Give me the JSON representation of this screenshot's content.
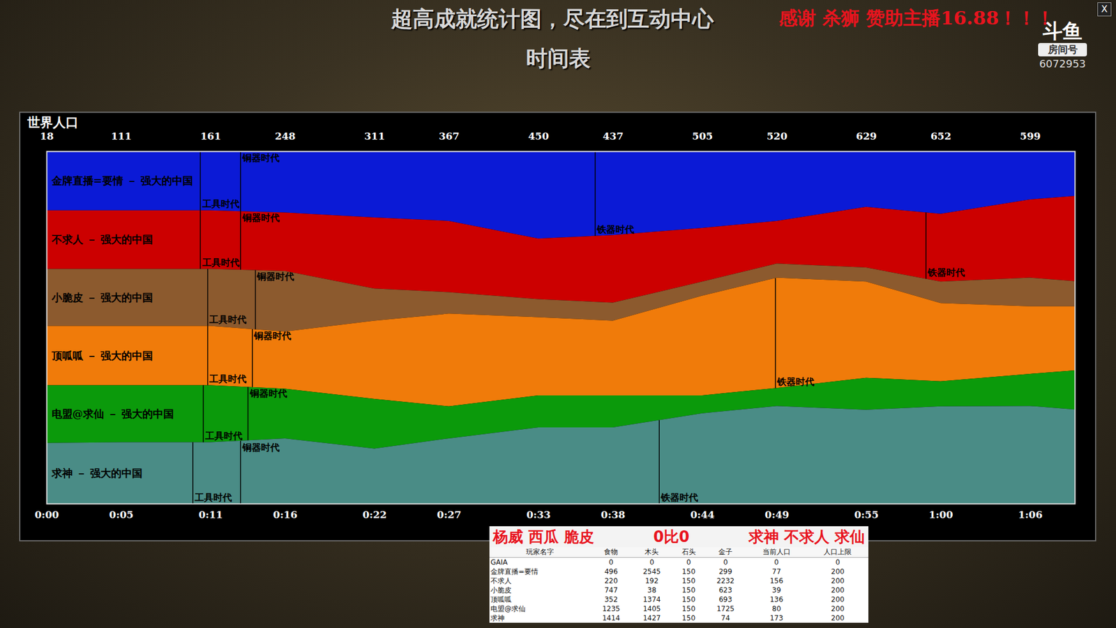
{
  "header": {
    "title": "超高成就统计图，尽在到互动中心",
    "donation": "感谢 杀狮 赞助主播16.88！！！",
    "subtitle": "时间表"
  },
  "watermark": {
    "logo": "斗鱼",
    "room_label": "房间号",
    "room_id": "6072953",
    "close": "X"
  },
  "chart_data": {
    "type": "area",
    "stacked": true,
    "title": "世界人口",
    "tick_labels": "x",
    "x": [
      0,
      5,
      11,
      16,
      22,
      27,
      33,
      38,
      44,
      49,
      55,
      60,
      66,
      69
    ],
    "xlim": [
      0,
      69
    ],
    "xticks": [
      {
        "value": 0,
        "label": "0:00"
      },
      {
        "value": 5,
        "label": "0:05"
      },
      {
        "value": 11,
        "label": "0:11"
      },
      {
        "value": 16,
        "label": "0:16"
      },
      {
        "value": 22,
        "label": "0:22"
      },
      {
        "value": 27,
        "label": "0:27"
      },
      {
        "value": 33,
        "label": "0:33"
      },
      {
        "value": 38,
        "label": "0:38"
      },
      {
        "value": 44,
        "label": "0:44"
      },
      {
        "value": 49,
        "label": "0:49"
      },
      {
        "value": 55,
        "label": "0:55"
      },
      {
        "value": 60,
        "label": "1:00"
      },
      {
        "value": 66,
        "label": "1:06"
      }
    ],
    "ylim": [
      0,
      100
    ],
    "world_population": {
      "x": [
        0,
        5,
        11,
        16,
        22,
        27,
        33,
        38,
        44,
        49,
        55,
        60,
        66
      ],
      "values": [
        18,
        111,
        161,
        248,
        311,
        367,
        450,
        437,
        505,
        520,
        629,
        652,
        599
      ]
    },
    "series": [
      {
        "name": "金牌直播=要情 － 强大的中国",
        "color": "#0b1ad6",
        "values": [
          16.8,
          16.8,
          16.8,
          17.4,
          18.8,
          19.8,
          24.8,
          23.8,
          21.8,
          19.8,
          15.8,
          17.8,
          13.7,
          12.7
        ],
        "markers": [
          {
            "label": "工具时代",
            "x": 10.3
          },
          {
            "label": "铜器时代",
            "x": 13.0
          },
          {
            "label": "铁器时代",
            "x": 36.8
          }
        ]
      },
      {
        "name": "不求人 － 强大的中国",
        "color": "#cc0000",
        "values": [
          16.6,
          16.6,
          16.6,
          16.6,
          20.2,
          20.2,
          17.2,
          19.2,
          15.2,
          12.1,
          17.2,
          19.2,
          22.2,
          24.2
        ],
        "markers": [
          {
            "label": "工具时代",
            "x": 10.3
          },
          {
            "label": "铜器时代",
            "x": 13.0
          },
          {
            "label": "铁器时代",
            "x": 59.0
          }
        ]
      },
      {
        "name": "小脆皮 － 强大的中国",
        "color": "#8c5a2e",
        "values": [
          16.2,
          16.2,
          16.2,
          17.2,
          9.1,
          6.1,
          5.1,
          5.1,
          4.0,
          4.0,
          4.0,
          6.1,
          8.1,
          7.1
        ],
        "markers": [
          {
            "label": "工具时代",
            "x": 10.8
          },
          {
            "label": "铜器时代",
            "x": 14.0
          }
        ]
      },
      {
        "name": "顶呱呱 － 强大的中国",
        "color": "#f07b0a",
        "values": [
          16.8,
          16.8,
          16.8,
          16.2,
          22.2,
          26.3,
          22.2,
          21.2,
          28.3,
          31.3,
          27.3,
          22.2,
          19.2,
          18.2
        ],
        "markers": [
          {
            "label": "工具时代",
            "x": 10.8
          },
          {
            "label": "铜器时代",
            "x": 13.8
          },
          {
            "label": "铁器时代",
            "x": 48.9
          }
        ]
      },
      {
        "name": "电盟@求仙 － 强大的中国",
        "color": "#0b9a0b",
        "values": [
          16.4,
          16.2,
          16.2,
          14.1,
          14.1,
          9.1,
          9.1,
          9.1,
          5.1,
          5.1,
          9.1,
          7.1,
          9.1,
          11.1
        ],
        "markers": [
          {
            "label": "工具时代",
            "x": 10.5
          },
          {
            "label": "铜器时代",
            "x": 13.5
          }
        ]
      },
      {
        "name": "求神 － 强大的中国",
        "color": "#4a8c86",
        "values": [
          17.2,
          17.4,
          17.4,
          18.5,
          15.6,
          18.5,
          21.6,
          21.6,
          25.6,
          27.7,
          26.6,
          27.6,
          27.7,
          26.7
        ],
        "markers": [
          {
            "label": "工具时代",
            "x": 9.8
          },
          {
            "label": "铜器时代",
            "x": 13.0
          },
          {
            "label": "铁器时代",
            "x": 41.1
          }
        ]
      }
    ]
  },
  "scoreboard": {
    "title": [
      "杨威 西瓜 脆皮",
      "0比0",
      "求神 不求人 求仙"
    ],
    "columns": [
      "玩家名字",
      "食物",
      "木头",
      "石头",
      "金子",
      "当前人口",
      "人口上限"
    ],
    "rows": [
      [
        "GAIA",
        0,
        0,
        0,
        0,
        0,
        0
      ],
      [
        "金牌直播=要情",
        496,
        2545,
        150,
        299,
        77,
        200
      ],
      [
        "不求人",
        220,
        192,
        150,
        2232,
        156,
        200
      ],
      [
        "小脆皮",
        747,
        38,
        150,
        623,
        39,
        200
      ],
      [
        "顶呱呱",
        352,
        1374,
        150,
        693,
        136,
        200
      ],
      [
        "电盟@求仙",
        1235,
        1405,
        150,
        1725,
        80,
        200
      ],
      [
        "求神",
        1414,
        1427,
        150,
        74,
        173,
        200
      ]
    ]
  }
}
